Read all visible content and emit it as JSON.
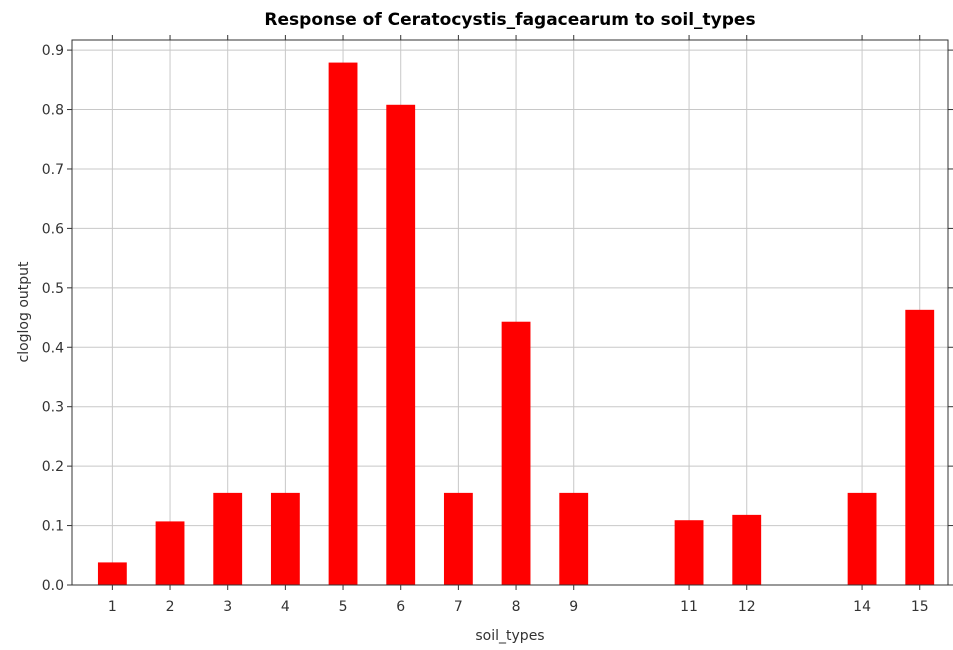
{
  "chart_data": {
    "type": "bar",
    "title": "Response of Ceratocystis_fagacearum to soil_types",
    "x_label": "soil_types",
    "y_label": "cloglog output",
    "x": [
      1,
      2,
      3,
      4,
      5,
      6,
      7,
      8,
      9,
      11,
      12,
      14,
      15
    ],
    "values": [
      0.038,
      0.107,
      0.155,
      0.155,
      0.879,
      0.808,
      0.155,
      0.443,
      0.155,
      0.109,
      0.118,
      0.155,
      0.463
    ],
    "color": "#ff0000",
    "xlim": [
      0.3,
      15.49
    ],
    "xticks": [
      1,
      2,
      3,
      4,
      5,
      6,
      7,
      8,
      9,
      11,
      12,
      14,
      15
    ],
    "ylim": [
      0,
      0.917
    ],
    "yticks": [
      {
        "value": 0,
        "label": "0.0"
      },
      0.1,
      0.2,
      0.3,
      0.4,
      0.5,
      0.6,
      0.7,
      0.8,
      0.9
    ],
    "grid": true
  }
}
